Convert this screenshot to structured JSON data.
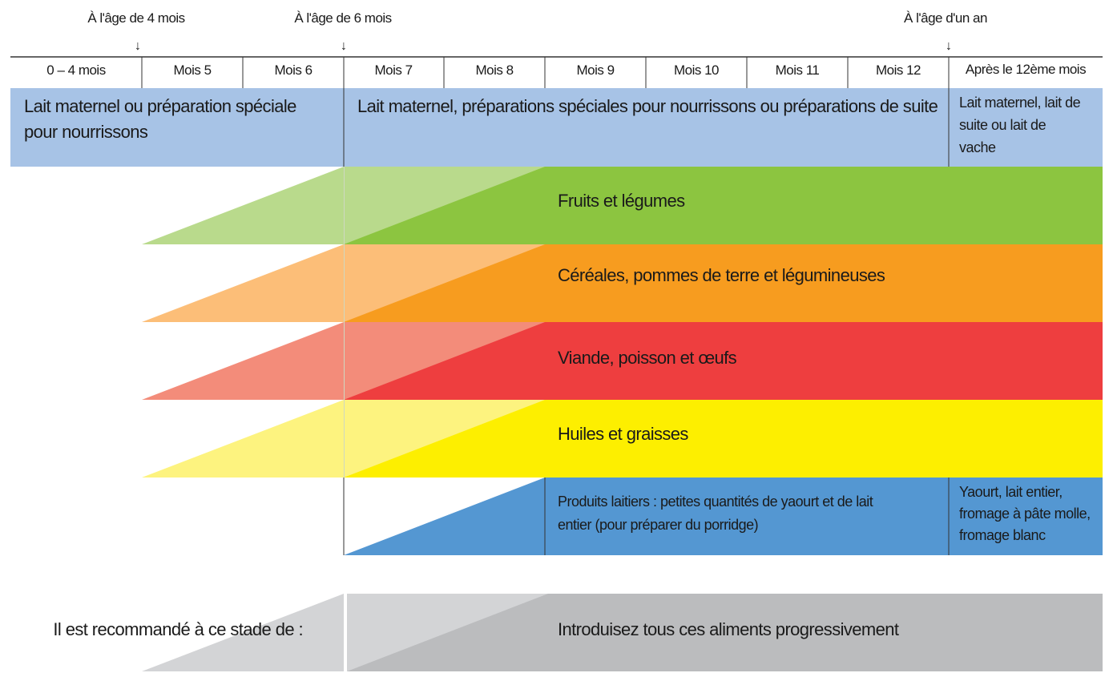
{
  "colors": {
    "milk": "#a7c3e6",
    "fruits_light": "#b9da8c",
    "fruits": "#8cc540",
    "cereals_light": "#fcbe78",
    "cereals": "#f79c1f",
    "meat_light": "#f38c7a",
    "meat": "#ee3e3f",
    "oils_light": "#fdf37f",
    "oils": "#fdef00",
    "dairy": "#5497d2",
    "intro_light": "#d3d4d6",
    "intro": "#bbbcbe",
    "rule": "#333333"
  },
  "milestones": [
    {
      "label": "À l'âge de 4 mois",
      "arrow": "↓"
    },
    {
      "label": "À l'âge de 6 mois",
      "arrow": "↓"
    },
    {
      "label": "À l'âge d'un an",
      "arrow": "↓"
    }
  ],
  "months": [
    "0 – 4 mois",
    "Mois 5",
    "Mois 6",
    "Mois 7",
    "Mois 8",
    "Mois 9",
    "Mois 10",
    "Mois 11",
    "Mois 12",
    "Après le 12ème mois"
  ],
  "milk": {
    "early": [
      "Lait maternel ou préparation spéciale",
      "pour nourrissons"
    ],
    "mid": [
      "Lait maternel, préparations spéciales pour nourrissons ou préparations de suite"
    ],
    "late": [
      "Lait maternel, lait de",
      "suite ou lait de",
      "vache"
    ]
  },
  "food_groups": {
    "fruits": "Fruits et légumes",
    "cereals": "Céréales, pommes de terre et légumineuses",
    "meat": "Viande, poisson et œufs",
    "oils": "Huiles et graisses"
  },
  "dairy": {
    "main": [
      "Produits laitiers : petites quantités de yaourt et de lait",
      "entier (pour préparer du porridge)"
    ],
    "late": [
      "Yaourt, lait entier,",
      "fromage à pâte molle,",
      "fromage blanc"
    ]
  },
  "recommendation": {
    "label": "Il est recommandé à ce stade de :",
    "action": "Introduisez tous ces aliments progressivement"
  }
}
